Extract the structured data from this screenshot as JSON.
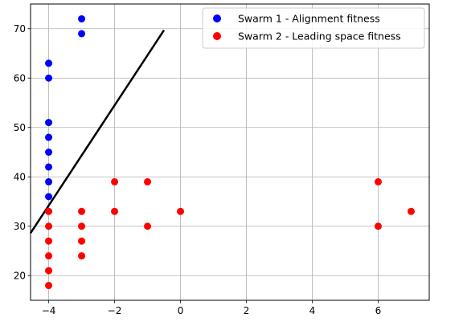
{
  "chart_data": {
    "type": "scatter",
    "title": "",
    "xlabel": "",
    "ylabel": "",
    "xlim": [
      -4.55,
      7.55
    ],
    "ylim": [
      15,
      75
    ],
    "xticks": [
      -4,
      -2,
      0,
      2,
      4,
      6
    ],
    "yticks": [
      20,
      30,
      40,
      50,
      60,
      70
    ],
    "grid": true,
    "legend_position": "top-right",
    "series": [
      {
        "name": "Swarm 1 - Alignment fitness",
        "color": "#0000ff",
        "points": [
          [
            -3,
            72
          ],
          [
            -3,
            69
          ],
          [
            -4,
            63
          ],
          [
            -4,
            60
          ],
          [
            -4,
            51
          ],
          [
            -4,
            48
          ],
          [
            -4,
            45
          ],
          [
            -4,
            42
          ],
          [
            -4,
            39
          ],
          [
            -4,
            36
          ]
        ]
      },
      {
        "name": "Swarm 2 - Leading space fitness",
        "color": "#ff0000",
        "points": [
          [
            -4,
            33
          ],
          [
            -4,
            30
          ],
          [
            -4,
            27
          ],
          [
            -4,
            24
          ],
          [
            -4,
            21
          ],
          [
            -4,
            18
          ],
          [
            -3,
            33
          ],
          [
            -3,
            30
          ],
          [
            -3,
            27
          ],
          [
            -3,
            24
          ],
          [
            -2,
            39
          ],
          [
            -2,
            33
          ],
          [
            -1,
            39
          ],
          [
            -1,
            30
          ],
          [
            0,
            33
          ],
          [
            6,
            39
          ],
          [
            6,
            30
          ],
          [
            7,
            33
          ]
        ]
      }
    ],
    "line": {
      "color": "#000000",
      "from": [
        -4.55,
        28.6
      ],
      "to": [
        -0.5,
        69.7
      ]
    }
  }
}
